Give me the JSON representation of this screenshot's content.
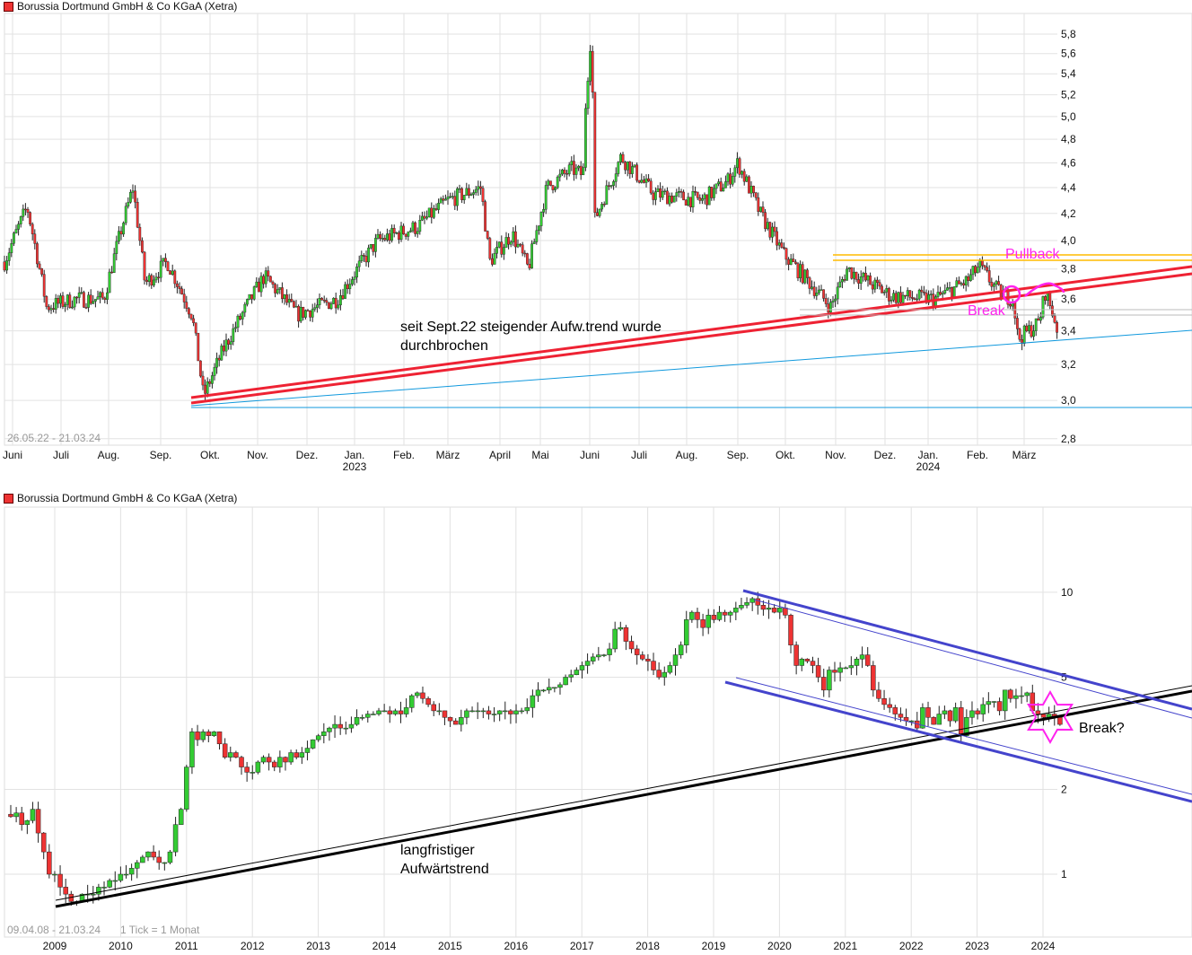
{
  "charts": [
    {
      "title": "Borussia Dortmund GmbH & Co KGaA (Xetra)",
      "type": "candlestick",
      "date_range": "26.05.22 - 21.03.24",
      "y_scale": "log",
      "ylim": [
        2.76,
        6.0
      ],
      "y_ticks": [
        "2,8",
        "3,0",
        "3,2",
        "3,4",
        "3,6",
        "3,8",
        "4,0",
        "4,2",
        "4,4",
        "4,6",
        "4,8",
        "5,0",
        "5,2",
        "5,4",
        "5,6",
        "5,8"
      ],
      "x_ticks": [
        "Juni",
        "Juli",
        "Aug.",
        "Sep.",
        "Okt.",
        "Nov.",
        "Dez.",
        "Jan.",
        "Feb.",
        "März",
        "April",
        "Mai",
        "Juni",
        "Juli",
        "Aug.",
        "Sep.",
        "Okt.",
        "Nov.",
        "Dez.",
        "Jan.",
        "Feb.",
        "März"
      ],
      "year_labels": [
        {
          "after": "Jan.",
          "index": 7,
          "label": "2023"
        },
        {
          "index": 19,
          "label": "2024"
        }
      ],
      "annotations": [
        "seit Sept.22 steigender Aufw.trend wurde",
        "durchbrochen",
        "Pullback",
        "Break"
      ],
      "colors": {
        "up": "#33cc33",
        "down": "#ee3333",
        "trend": "#ee2233",
        "support": "#1199dd",
        "resistance": "#ffbb00",
        "marker": "#ff22ee"
      },
      "path": [
        [
          "2022-05-26",
          3.85
        ],
        [
          "2022-06-10",
          4.25
        ],
        [
          "2022-06-22",
          3.55
        ],
        [
          "2022-07-10",
          3.6
        ],
        [
          "2022-07-28",
          3.6
        ],
        [
          "2022-08-15",
          4.4
        ],
        [
          "2022-08-22",
          3.7
        ],
        [
          "2022-09-05",
          3.85
        ],
        [
          "2022-09-20",
          3.5
        ],
        [
          "2022-09-27",
          3.02
        ],
        [
          "2022-10-10",
          3.3
        ],
        [
          "2022-11-05",
          3.75
        ],
        [
          "2022-11-25",
          3.5
        ],
        [
          "2022-12-20",
          3.6
        ],
        [
          "2023-01-15",
          4.0
        ],
        [
          "2023-02-10",
          4.1
        ],
        [
          "2023-03-01",
          4.3
        ],
        [
          "2023-03-20",
          4.4
        ],
        [
          "2023-03-25",
          3.85
        ],
        [
          "2023-04-10",
          4.05
        ],
        [
          "2023-04-22",
          3.8
        ],
        [
          "2023-05-05",
          4.4
        ],
        [
          "2023-05-20",
          4.55
        ],
        [
          "2023-05-27",
          4.5
        ],
        [
          "2023-05-28",
          5.0
        ],
        [
          "2023-06-02",
          5.85
        ],
        [
          "2023-06-04",
          4.15
        ],
        [
          "2023-06-20",
          4.65
        ],
        [
          "2023-07-10",
          4.35
        ],
        [
          "2023-08-10",
          4.3
        ],
        [
          "2023-08-25",
          4.45
        ],
        [
          "2023-09-01",
          4.6
        ],
        [
          "2023-09-15",
          4.2
        ],
        [
          "2023-09-30",
          3.9
        ],
        [
          "2023-10-20",
          3.65
        ],
        [
          "2023-10-28",
          3.55
        ],
        [
          "2023-11-08",
          3.8
        ],
        [
          "2023-12-05",
          3.62
        ],
        [
          "2024-01-05",
          3.6
        ],
        [
          "2024-01-25",
          3.72
        ],
        [
          "2024-02-02",
          3.82
        ],
        [
          "2024-02-15",
          3.64
        ],
        [
          "2024-02-24",
          3.6
        ],
        [
          "2024-02-27",
          3.35
        ],
        [
          "2024-03-10",
          3.45
        ],
        [
          "2024-03-14",
          3.65
        ],
        [
          "2024-03-21",
          3.42
        ]
      ]
    },
    {
      "title": "Borussia Dortmund GmbH & Co KGaA (Xetra)",
      "type": "candlestick",
      "date_range": "09.04.08 - 21.03.24",
      "tick_note": "1 Tick = 1 Monat",
      "y_scale": "log",
      "y_ticks": [
        "1",
        "2",
        "5",
        "10"
      ],
      "x_ticks": [
        "2009",
        "2010",
        "2011",
        "2012",
        "2013",
        "2014",
        "2015",
        "2016",
        "2017",
        "2018",
        "2019",
        "2020",
        "2021",
        "2022",
        "2023",
        "2024"
      ],
      "annotations": [
        "langfristiger",
        "Aufwärtstrend",
        "Break?"
      ],
      "start": "2008-04",
      "monthly_close": [
        1.6,
        1.65,
        1.5,
        1.55,
        1.7,
        1.4,
        1.2,
        1.0,
        1.0,
        0.9,
        0.85,
        0.8,
        0.8,
        0.85,
        0.85,
        0.85,
        0.9,
        0.9,
        0.95,
        0.95,
        1.0,
        1.0,
        1.05,
        1.1,
        1.15,
        1.2,
        1.15,
        1.1,
        1.1,
        1.2,
        1.5,
        1.7,
        2.4,
        3.2,
        3.0,
        3.2,
        3.1,
        3.2,
        2.9,
        2.6,
        2.7,
        2.6,
        2.4,
        2.3,
        2.3,
        2.5,
        2.6,
        2.5,
        2.4,
        2.6,
        2.5,
        2.7,
        2.6,
        2.7,
        2.8,
        3.0,
        3.1,
        3.2,
        3.3,
        3.4,
        3.3,
        3.3,
        3.4,
        3.6,
        3.6,
        3.7,
        3.7,
        3.8,
        3.8,
        3.7,
        3.8,
        3.7,
        3.9,
        4.3,
        4.4,
        4.2,
        4.0,
        3.8,
        3.8,
        3.6,
        3.5,
        3.4,
        3.6,
        3.8,
        3.8,
        3.8,
        3.8,
        3.7,
        3.7,
        3.8,
        3.8,
        3.7,
        3.8,
        3.8,
        3.9,
        4.3,
        4.5,
        4.5,
        4.6,
        4.6,
        4.7,
        5.0,
        5.1,
        5.3,
        5.5,
        5.7,
        5.9,
        6.0,
        6.0,
        6.3,
        7.4,
        7.5,
        6.7,
        6.3,
        6.0,
        5.8,
        5.7,
        5.3,
        5.0,
        5.2,
        5.5,
        6.0,
        6.5,
        8.0,
        8.5,
        8.0,
        7.5,
        8.3,
        8.0,
        8.5,
        8.3,
        8.5,
        8.8,
        9.0,
        9.2,
        9.5,
        9.0,
        8.7,
        8.8,
        8.5,
        8.8,
        8.3,
        6.5,
        5.5,
        5.8,
        5.7,
        5.5,
        5.0,
        4.5,
        5.3,
        5.2,
        5.4,
        5.4,
        5.5,
        5.8,
        6.0,
        5.5,
        4.5,
        4.2,
        4.0,
        3.9,
        3.7,
        3.6,
        3.5,
        3.5,
        3.3,
        3.9,
        3.6,
        3.4,
        3.7,
        3.8,
        3.5,
        3.9,
        3.1,
        3.6,
        3.8,
        3.7,
        4.0,
        4.1,
        4.1,
        3.8,
        4.5,
        4.2,
        4.3,
        4.3,
        4.4,
        3.8,
        3.7,
        3.6,
        3.7,
        3.6,
        3.4
      ]
    }
  ]
}
